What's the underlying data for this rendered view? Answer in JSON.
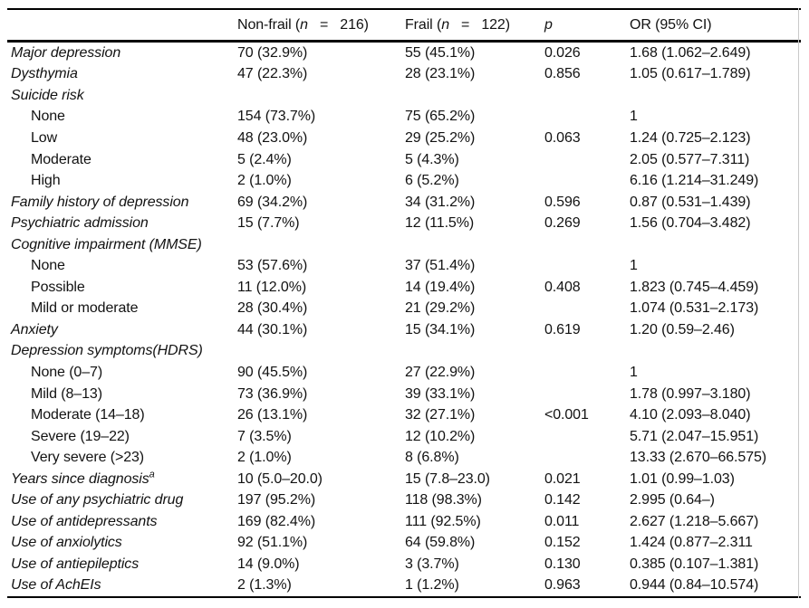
{
  "header": {
    "col_label": "",
    "col_nonfrail": {
      "pre": "Non-frail (",
      "var": "n",
      "post": "   =   216)"
    },
    "col_frail": {
      "pre": "Frail (",
      "var": "n",
      "post": "   =   122)"
    },
    "col_p": "p",
    "col_or": "OR (95% CI)"
  },
  "rows": [
    {
      "label": "Major depression",
      "indent": false,
      "nonfrail": "70 (32.9%)",
      "frail": "55 (45.1%)",
      "p": "0.026",
      "or": "1.68 (1.062–2.649)"
    },
    {
      "label": "Dysthymia",
      "indent": false,
      "nonfrail": "47 (22.3%)",
      "frail": "28 (23.1%)",
      "p": "0.856",
      "or": "1.05 (0.617–1.789)"
    },
    {
      "label": "Suicide risk",
      "indent": false,
      "nonfrail": "",
      "frail": "",
      "p": "",
      "or": ""
    },
    {
      "label": "None",
      "indent": true,
      "nonfrail": "154 (73.7%)",
      "frail": "75 (65.2%)",
      "p": "",
      "or": "1"
    },
    {
      "label": "Low",
      "indent": true,
      "nonfrail": "48 (23.0%)",
      "frail": "29 (25.2%)",
      "p": "0.063",
      "or": "1.24 (0.725–2.123)"
    },
    {
      "label": "Moderate",
      "indent": true,
      "nonfrail": "5 (2.4%)",
      "frail": "5 (4.3%)",
      "p": "",
      "or": "2.05 (0.577–7.311)"
    },
    {
      "label": "High",
      "indent": true,
      "nonfrail": "2 (1.0%)",
      "frail": "6 (5.2%)",
      "p": "",
      "or": "6.16 (1.214–31.249)"
    },
    {
      "label": "Family history of depression",
      "indent": false,
      "nonfrail": "69 (34.2%)",
      "frail": "34 (31.2%)",
      "p": "0.596",
      "or": "0.87 (0.531–1.439)"
    },
    {
      "label": "Psychiatric admission",
      "indent": false,
      "nonfrail": "15 (7.7%)",
      "frail": "12 (11.5%)",
      "p": "0.269",
      "or": "1.56 (0.704–3.482)"
    },
    {
      "label": "Cognitive impairment (MMSE)",
      "indent": false,
      "nonfrail": "",
      "frail": "",
      "p": "",
      "or": ""
    },
    {
      "label": "None",
      "indent": true,
      "nonfrail": "53 (57.6%)",
      "frail": "37 (51.4%)",
      "p": "",
      "or": "1"
    },
    {
      "label": "Possible",
      "indent": true,
      "nonfrail": "11 (12.0%)",
      "frail": "14 (19.4%)",
      "p": "0.408",
      "or": "1.823 (0.745–4.459)"
    },
    {
      "label": "Mild or moderate",
      "indent": true,
      "nonfrail": "28 (30.4%)",
      "frail": "21 (29.2%)",
      "p": "",
      "or": "1.074 (0.531–2.173)"
    },
    {
      "label": "Anxiety",
      "indent": false,
      "nonfrail": "44 (30.1%)",
      "frail": "15 (34.1%)",
      "p": "0.619",
      "or": "1.20 (0.59–2.46)"
    },
    {
      "label": "Depression symptoms(HDRS)",
      "indent": false,
      "nonfrail": "",
      "frail": "",
      "p": "",
      "or": ""
    },
    {
      "label": "None (0–7)",
      "indent": true,
      "nonfrail": "90 (45.5%)",
      "frail": "27 (22.9%)",
      "p": "",
      "or": "1"
    },
    {
      "label": "Mild (8–13)",
      "indent": true,
      "nonfrail": "73 (36.9%)",
      "frail": "39 (33.1%)",
      "p": "",
      "or": "1.78 (0.997–3.180)"
    },
    {
      "label": "Moderate (14–18)",
      "indent": true,
      "nonfrail": "26 (13.1%)",
      "frail": "32 (27.1%)",
      "p": "<0.001",
      "or": "4.10 (2.093–8.040)"
    },
    {
      "label": "Severe (19–22)",
      "indent": true,
      "nonfrail": "7 (3.5%)",
      "frail": "12 (10.2%)",
      "p": "",
      "or": "5.71 (2.047–15.951)"
    },
    {
      "label": "Very severe (>23)",
      "indent": true,
      "nonfrail": "2 (1.0%)",
      "frail": "8 (6.8%)",
      "p": "",
      "or": "13.33 (2.670–66.575)"
    },
    {
      "label": "Years since diagnosis",
      "sup": "a",
      "indent": false,
      "nonfrail": "10 (5.0–20.0)",
      "frail": "15 (7.8–23.0)",
      "p": "0.021",
      "or": "1.01 (0.99–1.03)"
    },
    {
      "label": "Use of any psychiatric drug",
      "indent": false,
      "nonfrail": "197 (95.2%)",
      "frail": "118 (98.3%)",
      "p": "0.142",
      "or": "2.995 (0.64–)"
    },
    {
      "label": "Use of antidepressants",
      "indent": false,
      "nonfrail": "169 (82.4%)",
      "frail": "111 (92.5%)",
      "p": "0.011",
      "or": "2.627 (1.218–5.667)"
    },
    {
      "label": "Use of anxiolytics",
      "indent": false,
      "nonfrail": "92 (51.1%)",
      "frail": "64 (59.8%)",
      "p": "0.152",
      "or": "1.424 (0.877–2.311"
    },
    {
      "label": "Use of antiepileptics",
      "indent": false,
      "nonfrail": "14 (9.0%)",
      "frail": "3 (3.7%)",
      "p": "0.130",
      "or": "0.385 (0.107–1.381)"
    },
    {
      "label": "Use of AchEIs",
      "indent": false,
      "nonfrail": "2 (1.3%)",
      "frail": "1 (1.2%)",
      "p": "0.963",
      "or": "0.944 (0.84–10.574)"
    }
  ]
}
